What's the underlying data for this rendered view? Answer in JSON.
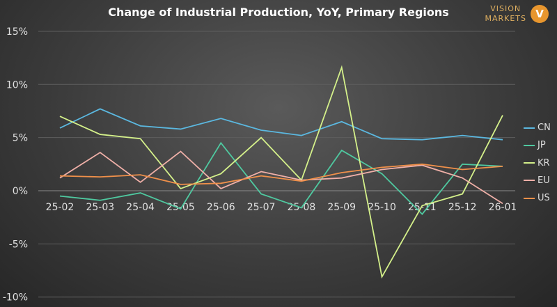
{
  "chart_data": {
    "type": "line",
    "title": "Change of Industrial Production, YoY, Primary Regions",
    "xlabel": "",
    "ylabel": "",
    "categories": [
      "25-02",
      "25-03",
      "25-04",
      "25-05",
      "25-06",
      "25-07",
      "25-08",
      "25-09",
      "25-10",
      "25-11",
      "25-12",
      "26-01"
    ],
    "ylim": [
      -10,
      15
    ],
    "yticks": [
      15,
      10,
      5,
      0,
      -5,
      -10
    ],
    "ytick_labels": [
      "15%",
      "10%",
      "5%",
      "0%",
      "-5%",
      "-10%"
    ],
    "legend_position": "right",
    "grid": true,
    "series": [
      {
        "name": "CN",
        "color": "#5bb8e0",
        "values": [
          5.9,
          7.7,
          6.1,
          5.8,
          6.8,
          5.7,
          5.2,
          6.5,
          4.9,
          4.8,
          5.2,
          4.8
        ]
      },
      {
        "name": "JP",
        "color": "#4fc9a0",
        "values": [
          -0.5,
          -0.9,
          -0.2,
          -1.7,
          4.5,
          -0.3,
          -1.6,
          3.8,
          1.6,
          -2.2,
          2.5,
          2.3
        ]
      },
      {
        "name": "KR",
        "color": "#d4f08a",
        "values": [
          7.0,
          5.3,
          4.9,
          0.2,
          1.6,
          5.0,
          1.0,
          11.6,
          -8.1,
          -1.4,
          -0.3,
          7.1
        ]
      },
      {
        "name": "EU",
        "color": "#f0b0a8",
        "values": [
          1.2,
          3.6,
          0.8,
          3.7,
          0.2,
          1.8,
          1.0,
          1.2,
          2.0,
          2.4,
          1.2,
          -1.2
        ]
      },
      {
        "name": "US",
        "color": "#f0904a",
        "values": [
          1.4,
          1.3,
          1.5,
          0.6,
          0.7,
          1.4,
          0.9,
          1.7,
          2.2,
          2.5,
          2.0,
          2.3
        ]
      }
    ]
  },
  "logo": {
    "line1": "VISION",
    "line2": "MARKETS",
    "mark": "V"
  }
}
